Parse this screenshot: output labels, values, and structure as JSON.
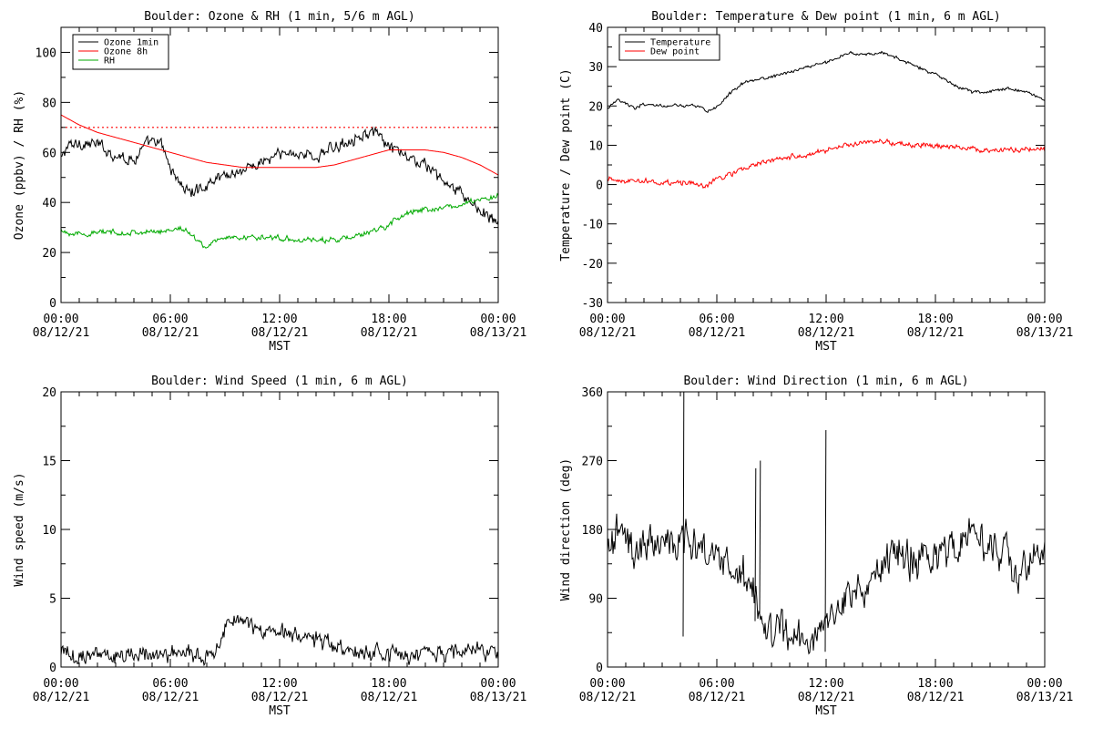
{
  "charts": [
    {
      "key": "ozone",
      "title": "Boulder: Ozone & RH (1 min, 5/6 m AGL)",
      "ylabel": "Ozone (ppbv) / RH (%)",
      "xlabel": "MST",
      "legend": [
        {
          "label": "Ozone 1min",
          "color": "#000000"
        },
        {
          "label": "Ozone 8h",
          "color": "#ff0000"
        },
        {
          "label": "RH",
          "color": "#00aa00"
        }
      ]
    },
    {
      "key": "temp",
      "title": "Boulder: Temperature & Dew point (1 min, 6 m AGL)",
      "ylabel": "Temperature / Dew point (C)",
      "xlabel": "MST",
      "legend": [
        {
          "label": "Temperature",
          "color": "#000000"
        },
        {
          "label": "Dew point",
          "color": "#ff0000"
        }
      ]
    },
    {
      "key": "wspd",
      "title": "Boulder: Wind Speed (1 min, 6 m AGL)",
      "ylabel": "Wind speed (m/s)",
      "xlabel": "MST",
      "legend": []
    },
    {
      "key": "wdir",
      "title": "Boulder: Wind Direction (1 min, 6 m AGL)",
      "ylabel": "Wind direction (deg)",
      "xlabel": "MST",
      "legend": []
    }
  ],
  "chart_data": [
    {
      "type": "line",
      "title": "Boulder: Ozone & RH (1 min, 5/6 m AGL)",
      "xlabel": "MST",
      "ylabel": "Ozone (ppbv) / RH (%)",
      "x_unit": "hours",
      "xlim": [
        0,
        24
      ],
      "ylim": [
        0,
        110
      ],
      "xticks": [
        0,
        6,
        12,
        18,
        24
      ],
      "xtick_labels": [
        [
          "00:00",
          "08/12/21"
        ],
        [
          "06:00",
          "08/12/21"
        ],
        [
          "12:00",
          "08/12/21"
        ],
        [
          "18:00",
          "08/12/21"
        ],
        [
          "00:00",
          "08/13/21"
        ]
      ],
      "yticks": [
        0,
        20,
        40,
        60,
        80,
        100
      ],
      "reference_line": {
        "y": 70,
        "style": "dotted",
        "color": "#ff0000"
      },
      "legend_position": "top-left",
      "series": [
        {
          "name": "Ozone 1min",
          "color": "#000000",
          "noise": 1.8,
          "x": [
            0,
            0.3,
            1,
            2,
            3,
            4,
            4.5,
            5,
            5.5,
            5.8,
            6,
            6.5,
            7,
            7.5,
            8,
            8.5,
            9,
            10,
            11,
            12,
            13,
            14,
            15,
            16,
            16.5,
            17,
            17.5,
            18,
            19,
            20,
            20.5,
            21,
            21.5,
            22,
            23,
            24
          ],
          "y": [
            57,
            62,
            64,
            63,
            59,
            57,
            62,
            64,
            63,
            58,
            54,
            48,
            44,
            45,
            47,
            50,
            51,
            53,
            56,
            59,
            60,
            58,
            62,
            66,
            67,
            68,
            66,
            62,
            58,
            55,
            52,
            48,
            46,
            43,
            37,
            31
          ]
        },
        {
          "name": "Ozone 8h",
          "color": "#ff0000",
          "noise": 0,
          "x": [
            0,
            1,
            2,
            3,
            4,
            5,
            6,
            7,
            8,
            9,
            10,
            11,
            12,
            13,
            14,
            15,
            16,
            17,
            18,
            19,
            20,
            21,
            22,
            23,
            24
          ],
          "y": [
            75,
            71,
            68,
            66,
            64,
            62,
            60,
            58,
            56,
            55,
            54,
            54,
            54,
            54,
            54,
            55,
            57,
            59,
            61,
            61,
            61,
            60,
            58,
            55,
            51
          ]
        },
        {
          "name": "RH",
          "color": "#00aa00",
          "noise": 0.8,
          "x": [
            0,
            1,
            2,
            3,
            4,
            5,
            6,
            6.5,
            7,
            7.5,
            8,
            8.5,
            9,
            10,
            11,
            12,
            13,
            14,
            15,
            16,
            17,
            18,
            18.5,
            19,
            20,
            21,
            22,
            23,
            24
          ],
          "y": [
            29,
            27,
            28,
            28,
            28,
            28,
            29,
            30,
            28,
            25,
            22,
            25,
            26,
            26,
            26,
            26,
            25,
            25,
            25,
            26,
            28,
            31,
            34,
            36,
            37,
            38,
            39,
            41,
            43
          ]
        }
      ]
    },
    {
      "type": "line",
      "title": "Boulder: Temperature & Dew point (1 min, 6 m AGL)",
      "xlabel": "MST",
      "ylabel": "Temperature / Dew point (C)",
      "x_unit": "hours",
      "xlim": [
        0,
        24
      ],
      "ylim": [
        -30,
        40
      ],
      "xticks": [
        0,
        6,
        12,
        18,
        24
      ],
      "xtick_labels": [
        [
          "00:00",
          "08/12/21"
        ],
        [
          "06:00",
          "08/12/21"
        ],
        [
          "12:00",
          "08/12/21"
        ],
        [
          "18:00",
          "08/12/21"
        ],
        [
          "00:00",
          "08/13/21"
        ]
      ],
      "yticks": [
        -30,
        -20,
        -10,
        0,
        10,
        20,
        30,
        40
      ],
      "legend_position": "top-left",
      "series": [
        {
          "name": "Temperature",
          "color": "#000000",
          "noise": 0.3,
          "x": [
            0,
            0.5,
            1,
            1.5,
            2,
            3,
            4,
            5,
            5.5,
            6,
            6.5,
            7,
            7.5,
            8,
            9,
            10,
            11,
            12,
            13,
            13.5,
            14,
            15,
            16,
            17,
            18,
            19,
            20,
            21,
            22,
            23,
            24
          ],
          "y": [
            19.5,
            21.5,
            20.5,
            19.5,
            20.5,
            20,
            20,
            20,
            18.5,
            19.5,
            22,
            24.5,
            26,
            26.5,
            27.5,
            28.5,
            30,
            31,
            33,
            33.5,
            33,
            33.5,
            32,
            30,
            28,
            25.5,
            23.5,
            23.5,
            24.5,
            23.5,
            21.5
          ]
        },
        {
          "name": "Dew point",
          "color": "#ff0000",
          "noise": 0.5,
          "x": [
            0,
            1,
            2,
            3,
            4,
            5,
            5.5,
            6,
            6.5,
            7,
            8,
            9,
            10,
            11,
            12,
            13,
            14,
            15,
            16,
            17,
            18,
            19,
            20,
            21,
            22,
            23,
            24
          ],
          "y": [
            1.5,
            1,
            1,
            0.5,
            0.5,
            0,
            -0.5,
            1.5,
            2.5,
            3,
            5,
            6,
            7,
            7.5,
            8.5,
            10,
            10.5,
            11,
            10.5,
            10,
            10,
            9.5,
            9,
            8.5,
            9,
            9,
            8.5
          ]
        }
      ]
    },
    {
      "type": "line",
      "title": "Boulder: Wind Speed (1 min, 6 m AGL)",
      "xlabel": "MST",
      "ylabel": "Wind speed (m/s)",
      "x_unit": "hours",
      "xlim": [
        0,
        24
      ],
      "ylim": [
        0,
        20
      ],
      "xticks": [
        0,
        6,
        12,
        18,
        24
      ],
      "xtick_labels": [
        [
          "00:00",
          "08/12/21"
        ],
        [
          "06:00",
          "08/12/21"
        ],
        [
          "12:00",
          "08/12/21"
        ],
        [
          "18:00",
          "08/12/21"
        ],
        [
          "00:00",
          "08/13/21"
        ]
      ],
      "yticks": [
        0,
        5,
        10,
        15,
        20
      ],
      "series": [
        {
          "name": "",
          "color": "#000000",
          "noise": 0.45,
          "x": [
            0,
            1,
            2,
            3,
            4,
            5,
            6,
            7,
            8,
            8.5,
            9,
            9.5,
            10,
            11,
            12,
            13,
            14,
            15,
            16,
            17,
            18,
            19,
            20,
            21,
            22,
            22.5,
            23,
            24
          ],
          "y": [
            1,
            0.8,
            0.9,
            0.9,
            1.0,
            0.8,
            0.9,
            1.0,
            0.9,
            1.0,
            3.0,
            3.5,
            3.2,
            2.8,
            2.5,
            2.2,
            1.8,
            1.4,
            1.2,
            1.1,
            1.0,
            1.0,
            1.0,
            1.0,
            1.0,
            1.6,
            1.2,
            1.0
          ]
        }
      ]
    },
    {
      "type": "line",
      "title": "Boulder: Wind Direction (1 min, 6 m AGL)",
      "xlabel": "MST",
      "ylabel": "Wind direction (deg)",
      "x_unit": "hours",
      "xlim": [
        0,
        24
      ],
      "ylim": [
        0,
        360
      ],
      "xticks": [
        0,
        6,
        12,
        18,
        24
      ],
      "xtick_labels": [
        [
          "00:00",
          "08/12/21"
        ],
        [
          "06:00",
          "08/12/21"
        ],
        [
          "12:00",
          "08/12/21"
        ],
        [
          "18:00",
          "08/12/21"
        ],
        [
          "00:00",
          "08/13/21"
        ]
      ],
      "yticks": [
        0,
        90,
        180,
        270,
        360
      ],
      "series": [
        {
          "name": "",
          "color": "#000000",
          "noise": 18,
          "x": [
            0,
            0.5,
            1,
            2,
            3,
            4,
            4.5,
            5,
            6,
            7,
            7.5,
            8,
            8.5,
            9,
            10,
            11,
            11.5,
            12,
            12.5,
            13,
            14,
            15,
            16,
            17,
            18,
            19,
            20,
            21,
            22,
            22.5,
            23,
            24
          ],
          "y": [
            150,
            180,
            160,
            165,
            160,
            170,
            165,
            150,
            140,
            120,
            110,
            95,
            60,
            45,
            50,
            45,
            40,
            65,
            75,
            95,
            110,
            130,
            150,
            140,
            150,
            160,
            165,
            160,
            145,
            120,
            140,
            150
          ]
        }
      ]
    }
  ]
}
